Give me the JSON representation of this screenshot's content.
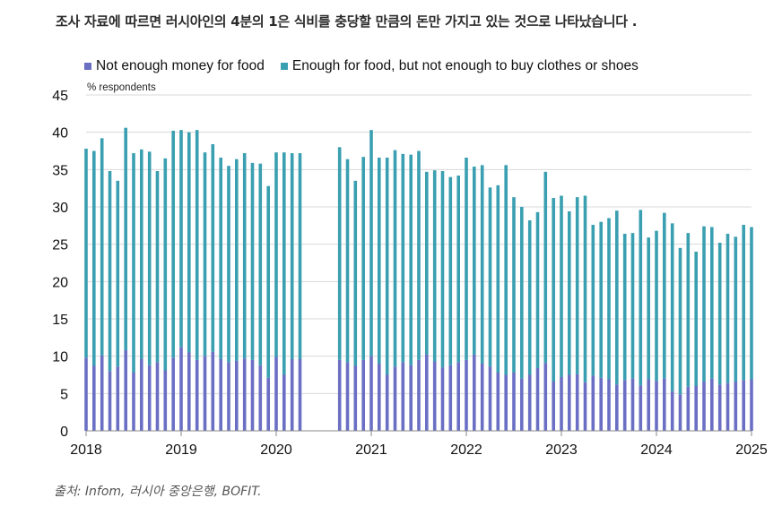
{
  "headline": "조사 자료에 따르면 러시아인의 4분의 1은 식비를 충당할 만큼의 돈만 가지고 있는 것으로 나타났습니다 .",
  "source": "출처: Infom, 러시아 중앙은행, BOFIT.",
  "colors": {
    "series1": "#6b6fc4",
    "series2": "#3a9fb0",
    "grid": "#d9d9d9",
    "axis": "#8a8a8a"
  },
  "chart_data": {
    "type": "bar",
    "stacked": true,
    "title": "",
    "ylabel": "% respondents",
    "ylim": [
      0,
      45
    ],
    "yticks": [
      0,
      5,
      10,
      15,
      20,
      25,
      30,
      35,
      40,
      45
    ],
    "xticks": [
      "2018",
      "2019",
      "2020",
      "2021",
      "2022",
      "2023",
      "2024",
      "2025"
    ],
    "xlim": [
      2018.0,
      2025.0
    ],
    "grid": true,
    "legend_position": "top",
    "x": [
      2018.0,
      2018.083,
      2018.167,
      2018.25,
      2018.333,
      2018.417,
      2018.5,
      2018.583,
      2018.667,
      2018.75,
      2018.833,
      2018.917,
      2019.0,
      2019.083,
      2019.167,
      2019.25,
      2019.333,
      2019.417,
      2019.5,
      2019.583,
      2019.667,
      2019.75,
      2019.833,
      2019.917,
      2020.0,
      2020.083,
      2020.167,
      2020.25,
      2020.667,
      2020.75,
      2020.833,
      2020.917,
      2021.0,
      2021.083,
      2021.167,
      2021.25,
      2021.333,
      2021.417,
      2021.5,
      2021.583,
      2021.667,
      2021.75,
      2021.833,
      2021.917,
      2022.0,
      2022.083,
      2022.167,
      2022.25,
      2022.333,
      2022.417,
      2022.5,
      2022.583,
      2022.667,
      2022.75,
      2022.833,
      2022.917,
      2023.0,
      2023.083,
      2023.167,
      2023.25,
      2023.333,
      2023.417,
      2023.5,
      2023.583,
      2023.667,
      2023.75,
      2023.833,
      2023.917,
      2024.0,
      2024.083,
      2024.167,
      2024.25,
      2024.333,
      2024.417,
      2024.5,
      2024.583,
      2024.667,
      2024.75,
      2024.833,
      2024.917,
      2025.0
    ],
    "series": [
      {
        "name": "Not enough money for food",
        "values": [
          9.8,
          8.7,
          10.1,
          8.0,
          8.6,
          10.8,
          7.8,
          9.6,
          8.8,
          9.2,
          8.1,
          9.8,
          11.2,
          10.5,
          9.5,
          10.0,
          10.6,
          9.6,
          9.2,
          9.4,
          9.7,
          9.5,
          8.8,
          7.1,
          9.9,
          7.5,
          9.6,
          9.6,
          9.5,
          9.2,
          8.7,
          9.5,
          10.0,
          9.0,
          7.5,
          8.6,
          9.2,
          8.8,
          9.5,
          10.2,
          9.3,
          8.5,
          8.8,
          9.2,
          9.5,
          10.2,
          9.0,
          8.6,
          7.8,
          7.5,
          7.8,
          7.0,
          7.5,
          8.4,
          9.1,
          6.6,
          7.2,
          7.5,
          7.6,
          6.5,
          7.4,
          7.1,
          6.9,
          6.2,
          6.8,
          7.0,
          6.1,
          6.9,
          6.7,
          7.0,
          5.3,
          4.9,
          5.9,
          6.0,
          6.6,
          7.0,
          6.2,
          6.4,
          6.6,
          6.8,
          6.9
        ]
      },
      {
        "name": "Enough for food, but not enough to buy clothes or shoes",
        "values": [
          28.0,
          28.8,
          29.1,
          26.8,
          24.9,
          29.8,
          29.4,
          28.1,
          28.6,
          25.6,
          28.4,
          30.4,
          29.1,
          29.5,
          30.8,
          27.3,
          27.8,
          27.0,
          26.3,
          27.0,
          27.5,
          26.4,
          27.0,
          25.7,
          27.4,
          29.8,
          27.6,
          27.6,
          28.5,
          27.2,
          24.8,
          27.2,
          30.3,
          27.6,
          29.1,
          29.0,
          27.9,
          28.2,
          28.0,
          24.5,
          25.6,
          26.3,
          25.2,
          25.0,
          27.1,
          25.2,
          26.6,
          24.0,
          25.1,
          28.1,
          23.5,
          23.0,
          20.7,
          20.9,
          25.6,
          24.6,
          24.3,
          21.9,
          23.7,
          25.0,
          20.2,
          20.9,
          21.6,
          23.3,
          19.6,
          19.5,
          23.5,
          19.0,
          20.1,
          22.2,
          22.5,
          19.6,
          20.6,
          18.0,
          20.8,
          20.3,
          19.0,
          20.0,
          19.4,
          20.8,
          20.4
        ]
      }
    ]
  }
}
